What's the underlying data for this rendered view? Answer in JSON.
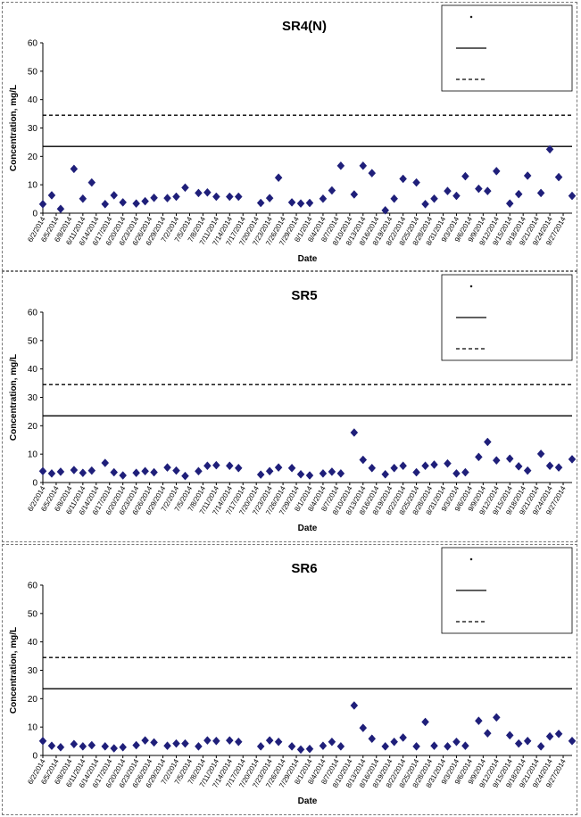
{
  "chart_data": [
    {
      "type": "scatter",
      "title": "SR4(N)",
      "xlabel": "Date",
      "ylabel": "Concentration, mg/L",
      "ylim": [
        0,
        60
      ],
      "yticks": [
        0,
        10,
        20,
        30,
        40,
        50,
        60
      ],
      "x_range": [
        "6/2/2014",
        "9/29/2014"
      ],
      "x_tick_labels": [
        "6/2/2014",
        "6/5/2014",
        "6/8/2014",
        "6/11/2014",
        "6/14/2014",
        "6/17/2014",
        "6/20/2014",
        "6/23/2014",
        "6/26/2014",
        "6/29/2014",
        "7/2/2014",
        "7/5/2014",
        "7/8/2014",
        "7/11/2014",
        "7/14/2014",
        "7/17/2014",
        "7/20/2014",
        "7/23/2014",
        "7/26/2014",
        "7/29/2014",
        "8/1/2014",
        "8/4/2014",
        "8/7/2014",
        "8/10/2014",
        "8/13/2014",
        "8/16/2014",
        "8/19/2014",
        "8/22/2014",
        "8/25/2014",
        "8/28/2014",
        "8/31/2014",
        "9/3/2014",
        "9/6/2014",
        "9/9/2014",
        "9/12/2014",
        "9/15/2014",
        "9/18/2014",
        "9/21/2014",
        "9/24/2014",
        "9/27/2014"
      ],
      "legend_placement": "top-right",
      "legend": [
        "",
        "",
        ""
      ],
      "solid_line_value": 23.5,
      "dashed_line_value": 34.5,
      "marker_color": "#1f1f7a",
      "series": [
        {
          "points": [
            [
              "6/2/2014",
              3.2
            ],
            [
              "6/4/2014",
              6.3
            ],
            [
              "6/6/2014",
              1.5
            ],
            [
              "6/9/2014",
              15.6
            ],
            [
              "6/11/2014",
              5.1
            ],
            [
              "6/13/2014",
              10.8
            ],
            [
              "6/16/2014",
              3.2
            ],
            [
              "6/18/2014",
              6.3
            ],
            [
              "6/20/2014",
              3.8
            ],
            [
              "6/23/2014",
              3.4
            ],
            [
              "6/25/2014",
              4.2
            ],
            [
              "6/27/2014",
              5.4
            ],
            [
              "6/30/2014",
              5.3
            ],
            [
              "7/2/2014",
              5.8
            ],
            [
              "7/4/2014",
              9.0
            ],
            [
              "7/7/2014",
              7.1
            ],
            [
              "7/9/2014",
              7.3
            ],
            [
              "7/11/2014",
              5.8
            ],
            [
              "7/14/2014",
              5.8
            ],
            [
              "7/16/2014",
              5.8
            ],
            [
              "7/21/2014",
              3.6
            ],
            [
              "7/23/2014",
              5.3
            ],
            [
              "7/25/2014",
              12.5
            ],
            [
              "7/28/2014",
              3.8
            ],
            [
              "7/30/2014",
              3.4
            ],
            [
              "8/1/2014",
              3.6
            ],
            [
              "8/4/2014",
              5.1
            ],
            [
              "8/6/2014",
              8.0
            ],
            [
              "8/8/2014",
              16.7
            ],
            [
              "8/11/2014",
              6.6
            ],
            [
              "8/13/2014",
              16.7
            ],
            [
              "8/15/2014",
              14.1
            ],
            [
              "8/18/2014",
              1.0
            ],
            [
              "8/20/2014",
              5.1
            ],
            [
              "8/22/2014",
              12.1
            ],
            [
              "8/25/2014",
              10.8
            ],
            [
              "8/27/2014",
              3.2
            ],
            [
              "8/29/2014",
              5.1
            ],
            [
              "9/1/2014",
              7.8
            ],
            [
              "9/3/2014",
              6.1
            ],
            [
              "9/5/2014",
              13.0
            ],
            [
              "9/8/2014",
              8.6
            ],
            [
              "9/10/2014",
              7.8
            ],
            [
              "9/12/2014",
              14.8
            ],
            [
              "9/15/2014",
              3.4
            ],
            [
              "9/17/2014",
              6.7
            ],
            [
              "9/19/2014",
              13.2
            ],
            [
              "9/22/2014",
              7.1
            ],
            [
              "9/24/2014",
              22.5
            ],
            [
              "9/26/2014",
              12.7
            ],
            [
              "9/29/2014",
              6.1
            ]
          ]
        }
      ]
    },
    {
      "type": "scatter",
      "title": "SR5",
      "xlabel": "Date",
      "ylabel": "Concentration, mg/L",
      "ylim": [
        0,
        60
      ],
      "yticks": [
        0,
        10,
        20,
        30,
        40,
        50,
        60
      ],
      "x_range": [
        "6/2/2014",
        "9/29/2014"
      ],
      "x_tick_labels": [
        "6/2/2014",
        "6/5/2014",
        "6/8/2014",
        "6/11/2014",
        "6/14/2014",
        "6/17/2014",
        "6/20/2014",
        "6/23/2014",
        "6/26/2014",
        "6/29/2014",
        "7/2/2014",
        "7/5/2014",
        "7/8/2014",
        "7/11/2014",
        "7/14/2014",
        "7/17/2014",
        "7/20/2014",
        "7/23/2014",
        "7/26/2014",
        "7/29/2014",
        "8/1/2014",
        "8/4/2014",
        "8/7/2014",
        "8/10/2014",
        "8/13/2014",
        "8/16/2014",
        "8/19/2014",
        "8/22/2014",
        "8/25/2014",
        "8/28/2014",
        "8/31/2014",
        "9/3/2014",
        "9/6/2014",
        "9/9/2014",
        "9/12/2014",
        "9/15/2014",
        "9/18/2014",
        "9/21/2014",
        "9/24/2014",
        "9/27/2014"
      ],
      "legend_placement": "top-right",
      "legend": [
        "",
        "",
        ""
      ],
      "solid_line_value": 23.5,
      "dashed_line_value": 34.5,
      "marker_color": "#1f1f7a",
      "series": [
        {
          "points": [
            [
              "6/2/2014",
              4.0
            ],
            [
              "6/4/2014",
              3.2
            ],
            [
              "6/6/2014",
              3.8
            ],
            [
              "6/9/2014",
              4.4
            ],
            [
              "6/11/2014",
              3.4
            ],
            [
              "6/13/2014",
              4.2
            ],
            [
              "6/16/2014",
              6.9
            ],
            [
              "6/18/2014",
              3.6
            ],
            [
              "6/20/2014",
              2.5
            ],
            [
              "6/23/2014",
              3.4
            ],
            [
              "6/25/2014",
              4.0
            ],
            [
              "6/27/2014",
              3.6
            ],
            [
              "6/30/2014",
              5.3
            ],
            [
              "7/2/2014",
              4.2
            ],
            [
              "7/4/2014",
              2.3
            ],
            [
              "7/7/2014",
              4.0
            ],
            [
              "7/9/2014",
              5.9
            ],
            [
              "7/11/2014",
              6.1
            ],
            [
              "7/14/2014",
              5.9
            ],
            [
              "7/16/2014",
              5.1
            ],
            [
              "7/21/2014",
              2.8
            ],
            [
              "7/23/2014",
              4.0
            ],
            [
              "7/25/2014",
              5.3
            ],
            [
              "7/28/2014",
              5.1
            ],
            [
              "7/30/2014",
              2.9
            ],
            [
              "8/1/2014",
              2.5
            ],
            [
              "8/4/2014",
              3.2
            ],
            [
              "8/6/2014",
              3.8
            ],
            [
              "8/8/2014",
              3.2
            ],
            [
              "8/11/2014",
              17.6
            ],
            [
              "8/13/2014",
              8.0
            ],
            [
              "8/15/2014",
              5.1
            ],
            [
              "8/18/2014",
              2.9
            ],
            [
              "8/20/2014",
              5.1
            ],
            [
              "8/22/2014",
              5.9
            ],
            [
              "8/25/2014",
              3.6
            ],
            [
              "8/27/2014",
              5.9
            ],
            [
              "8/29/2014",
              6.3
            ],
            [
              "9/1/2014",
              6.7
            ],
            [
              "9/3/2014",
              3.2
            ],
            [
              "9/5/2014",
              3.6
            ],
            [
              "9/8/2014",
              9.0
            ],
            [
              "9/10/2014",
              14.3
            ],
            [
              "9/12/2014",
              7.8
            ],
            [
              "9/15/2014",
              8.4
            ],
            [
              "9/17/2014",
              5.7
            ],
            [
              "9/19/2014",
              4.2
            ],
            [
              "9/22/2014",
              10.1
            ],
            [
              "9/24/2014",
              5.9
            ],
            [
              "9/26/2014",
              5.3
            ],
            [
              "9/29/2014",
              8.2
            ]
          ]
        }
      ]
    },
    {
      "type": "scatter",
      "title": "SR6",
      "xlabel": "Date",
      "ylabel": "Concentration, mg/L",
      "ylim": [
        0,
        60
      ],
      "yticks": [
        0,
        10,
        20,
        30,
        40,
        50,
        60
      ],
      "x_range": [
        "6/2/2014",
        "9/29/2014"
      ],
      "x_tick_labels": [
        "6/2/2014",
        "6/5/2014",
        "6/8/2014",
        "6/11/2014",
        "6/14/2014",
        "6/17/2014",
        "6/20/2014",
        "6/23/2014",
        "6/26/2014",
        "6/29/2014",
        "7/2/2014",
        "7/5/2014",
        "7/8/2014",
        "7/11/2014",
        "7/14/2014",
        "7/17/2014",
        "7/20/2014",
        "7/23/2014",
        "7/26/2014",
        "7/29/2014",
        "8/1/2014",
        "8/4/2014",
        "8/7/2014",
        "8/10/2014",
        "8/13/2014",
        "8/16/2014",
        "8/19/2014",
        "8/22/2014",
        "8/25/2014",
        "8/28/2014",
        "8/31/2014",
        "9/3/2014",
        "9/6/2014",
        "9/9/2014",
        "9/12/2014",
        "9/15/2014",
        "9/18/2014",
        "9/21/2014",
        "9/24/2014",
        "9/27/2014"
      ],
      "legend_placement": "top-right",
      "legend": [
        "",
        "",
        ""
      ],
      "solid_line_value": 23.5,
      "dashed_line_value": 34.5,
      "marker_color": "#1f1f7a",
      "series": [
        {
          "points": [
            [
              "6/2/2014",
              5.1
            ],
            [
              "6/4/2014",
              3.4
            ],
            [
              "6/6/2014",
              2.9
            ],
            [
              "6/9/2014",
              4.0
            ],
            [
              "6/11/2014",
              3.2
            ],
            [
              "6/13/2014",
              3.6
            ],
            [
              "6/16/2014",
              3.2
            ],
            [
              "6/18/2014",
              2.5
            ],
            [
              "6/20/2014",
              2.9
            ],
            [
              "6/23/2014",
              3.6
            ],
            [
              "6/25/2014",
              5.3
            ],
            [
              "6/27/2014",
              4.6
            ],
            [
              "6/30/2014",
              3.4
            ],
            [
              "7/2/2014",
              4.2
            ],
            [
              "7/4/2014",
              4.2
            ],
            [
              "7/7/2014",
              3.2
            ],
            [
              "7/9/2014",
              5.3
            ],
            [
              "7/11/2014",
              5.1
            ],
            [
              "7/14/2014",
              5.3
            ],
            [
              "7/16/2014",
              4.8
            ],
            [
              "7/21/2014",
              3.2
            ],
            [
              "7/23/2014",
              5.3
            ],
            [
              "7/25/2014",
              4.8
            ],
            [
              "7/28/2014",
              3.2
            ],
            [
              "7/30/2014",
              2.1
            ],
            [
              "8/1/2014",
              2.3
            ],
            [
              "8/4/2014",
              3.4
            ],
            [
              "8/6/2014",
              4.8
            ],
            [
              "8/8/2014",
              3.2
            ],
            [
              "8/11/2014",
              17.6
            ],
            [
              "8/13/2014",
              9.7
            ],
            [
              "8/15/2014",
              5.9
            ],
            [
              "8/18/2014",
              3.2
            ],
            [
              "8/20/2014",
              4.8
            ],
            [
              "8/22/2014",
              6.3
            ],
            [
              "8/25/2014",
              3.2
            ],
            [
              "8/27/2014",
              11.8
            ],
            [
              "8/29/2014",
              3.4
            ],
            [
              "9/1/2014",
              3.2
            ],
            [
              "9/3/2014",
              4.8
            ],
            [
              "9/5/2014",
              3.4
            ],
            [
              "9/8/2014",
              12.2
            ],
            [
              "9/10/2014",
              7.8
            ],
            [
              "9/12/2014",
              13.4
            ],
            [
              "9/15/2014",
              7.1
            ],
            [
              "9/17/2014",
              4.2
            ],
            [
              "9/19/2014",
              5.1
            ],
            [
              "9/22/2014",
              3.2
            ],
            [
              "9/24/2014",
              6.7
            ],
            [
              "9/26/2014",
              7.6
            ],
            [
              "9/29/2014",
              5.1
            ]
          ]
        }
      ]
    }
  ]
}
